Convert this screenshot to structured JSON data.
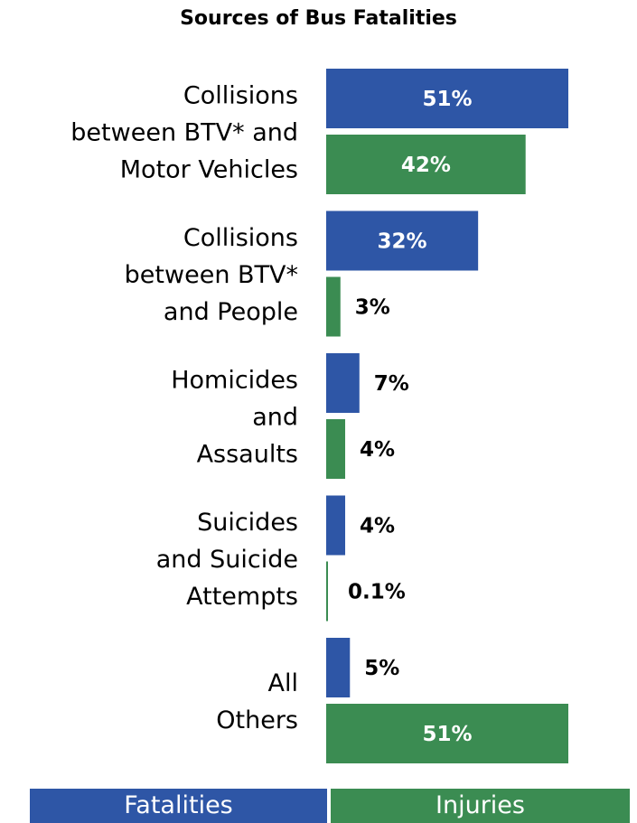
{
  "chart_data": {
    "type": "bar",
    "orientation": "horizontal",
    "title": "Sources of Bus Fatalities",
    "categories": [
      "Collisions between BTV* and Motor Vehicles",
      "Collisions between BTV* and People",
      "Homicides and Assaults",
      "Suicides and Suicide Attempts",
      "All Others"
    ],
    "category_lines": [
      [
        "Collisions",
        "between BTV* and",
        "Motor Vehicles"
      ],
      [
        "Collisions",
        "between BTV*",
        "and People"
      ],
      [
        "Homicides",
        "and",
        "Assaults"
      ],
      [
        "Suicides",
        "and Suicide",
        "Attempts"
      ],
      [
        "All",
        "Others"
      ]
    ],
    "series": [
      {
        "name": "Fatalities",
        "color": "#2E56A6",
        "values": [
          51,
          32,
          7,
          4,
          5
        ],
        "labels": [
          "51%",
          "32%",
          "7%",
          "4%",
          "5%"
        ]
      },
      {
        "name": "Injuries",
        "color": "#3B8C52",
        "values": [
          42,
          3,
          4,
          0.1,
          51
        ],
        "labels": [
          "42%",
          "3%",
          "4%",
          "0.1%",
          "51%"
        ]
      }
    ],
    "xlim": [
      0,
      51
    ],
    "legend_placement": "bottom",
    "grid": false
  }
}
